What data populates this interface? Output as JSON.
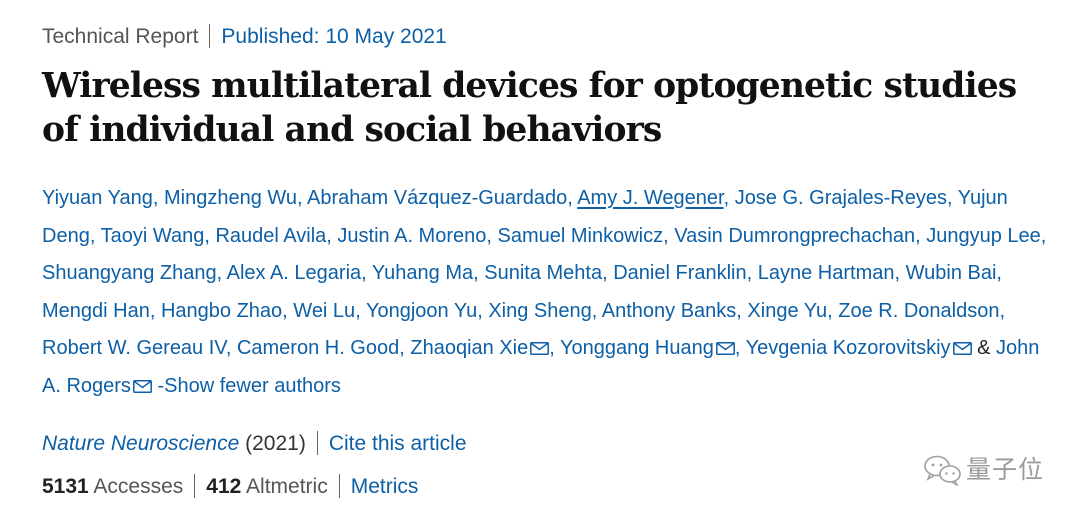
{
  "header": {
    "article_type": "Technical Report",
    "published": "Published: 10 May 2021"
  },
  "title": "Wireless multilateral devices for optogenetic studies of individual and social behaviors",
  "authors": [
    "Yiyuan Yang",
    "Mingzheng Wu",
    "Abraham Vázquez-Guardado",
    "Amy J. Wegener",
    "Jose G. Grajales-Reyes",
    "Yujun Deng",
    "Taoyi Wang",
    "Raudel Avila",
    "Justin A. Moreno",
    "Samuel Minkowicz",
    "Vasin Dumrongprechachan",
    "Jungyup Lee",
    "Shuangyang Zhang",
    "Alex A. Legaria",
    "Yuhang Ma",
    "Sunita Mehta",
    "Daniel Franklin",
    "Layne Hartman",
    "Wubin Bai",
    "Mengdi Han",
    "Hangbo Zhao",
    "Wei Lu",
    "Yongjoon Yu",
    "Xing Sheng",
    "Anthony Banks",
    "Xinge Yu",
    "Zoe R. Donaldson",
    "Robert W. Gereau IV",
    "Cameron H. Good",
    "Zhaoqian Xie",
    "Yonggang Huang",
    "Yevgenia Kozorovitskiy",
    "John A. Rogers"
  ],
  "authors_ampersand": "&",
  "show_fewer": "-Show fewer authors",
  "citation": {
    "journal": "Nature Neuroscience",
    "year": "(2021)",
    "cite_link": "Cite this article"
  },
  "metrics": {
    "accesses_count": "5131",
    "accesses_label": "Accesses",
    "altmetric_count": "412",
    "altmetric_label": "Altmetric",
    "metrics_link": "Metrics"
  },
  "watermark": {
    "text": "量子位",
    "icon": "wechat-logo-icon"
  },
  "colors": {
    "link": "#0d5fa6",
    "text": "#222222",
    "muted": "#555555"
  }
}
